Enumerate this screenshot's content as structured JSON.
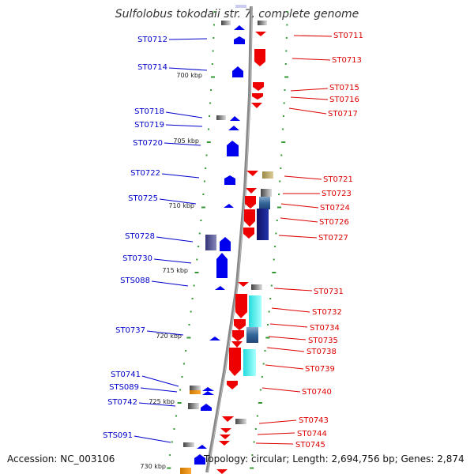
{
  "title": "Sulfolobus tokodaii str. 7, complete genome",
  "footer": {
    "accession": "Accession: NC_003106",
    "summary": "Topology: circular; Length: 2,694,756 bp; Genes: 2,874"
  },
  "colors": {
    "forward": "#0000ee",
    "reverse": "#ee0000",
    "backbone": "#888888",
    "tick": "#339933"
  },
  "scale_labels": [
    "700 kbp",
    "705 kbp",
    "710 kbp",
    "715 kbp",
    "720 kbp",
    "725 kbp",
    "730 kbp"
  ],
  "left_labels": [
    "ST0712",
    "ST0714",
    "ST0718",
    "ST0719",
    "ST0720",
    "ST0722",
    "ST0725",
    "ST0728",
    "ST0730",
    "STS088",
    "ST0737",
    "ST0741",
    "STS089",
    "ST0742",
    "STS091"
  ],
  "right_labels": [
    "ST0711",
    "ST0713",
    "ST0715",
    "ST0716",
    "ST0717",
    "ST0721",
    "ST0723",
    "ST0724",
    "ST0726",
    "ST0727",
    "ST0731",
    "ST0732",
    "ST0734",
    "ST0735",
    "ST0738",
    "ST0739",
    "ST0740",
    "ST0743",
    "ST0744",
    "ST0745"
  ]
}
